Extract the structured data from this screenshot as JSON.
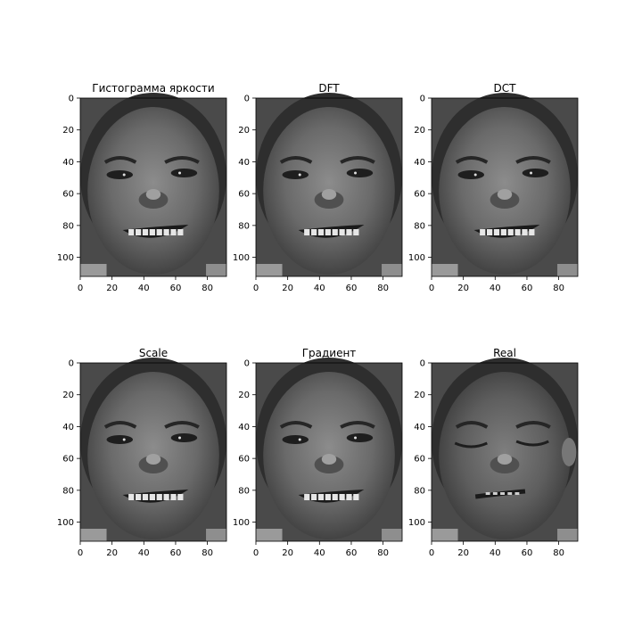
{
  "chart_data": [
    {
      "type": "image",
      "title": "Гистограмма яркости",
      "x_ticks": [
        0,
        20,
        40,
        60,
        80
      ],
      "y_ticks": [
        0,
        20,
        40,
        60,
        80,
        100
      ],
      "xlim": [
        0,
        92
      ],
      "ylim": [
        112,
        0
      ],
      "image_variant": "smile"
    },
    {
      "type": "image",
      "title": "DFT",
      "x_ticks": [
        0,
        20,
        40,
        60,
        80
      ],
      "y_ticks": [
        0,
        20,
        40,
        60,
        80,
        100
      ],
      "xlim": [
        0,
        92
      ],
      "ylim": [
        112,
        0
      ],
      "image_variant": "smile"
    },
    {
      "type": "image",
      "title": "DCT",
      "x_ticks": [
        0,
        20,
        40,
        60,
        80
      ],
      "y_ticks": [
        0,
        20,
        40,
        60,
        80,
        100
      ],
      "xlim": [
        0,
        92
      ],
      "ylim": [
        112,
        0
      ],
      "image_variant": "smile"
    },
    {
      "type": "image",
      "title": "Scale",
      "x_ticks": [
        0,
        20,
        40,
        60,
        80
      ],
      "y_ticks": [
        0,
        20,
        40,
        60,
        80,
        100
      ],
      "xlim": [
        0,
        92
      ],
      "ylim": [
        112,
        0
      ],
      "image_variant": "smile"
    },
    {
      "type": "image",
      "title": "Градиент",
      "x_ticks": [
        0,
        20,
        40,
        60,
        80
      ],
      "y_ticks": [
        0,
        20,
        40,
        60,
        80,
        100
      ],
      "xlim": [
        0,
        92
      ],
      "ylim": [
        112,
        0
      ],
      "image_variant": "smile"
    },
    {
      "type": "image",
      "title": "Real",
      "x_ticks": [
        0,
        20,
        40,
        60,
        80
      ],
      "y_ticks": [
        0,
        20,
        40,
        60,
        80,
        100
      ],
      "xlim": [
        0,
        92
      ],
      "ylim": [
        112,
        0
      ],
      "image_variant": "closed-eyes"
    }
  ]
}
